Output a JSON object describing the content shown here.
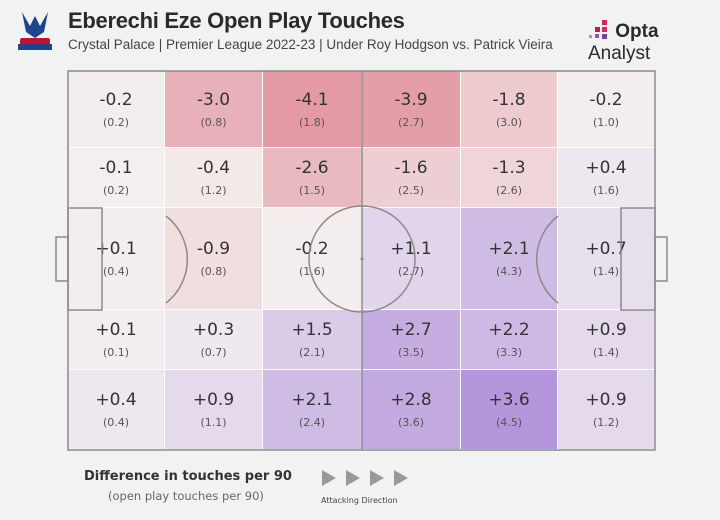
{
  "header": {
    "title": "Eberechi Eze Open Play Touches",
    "subtitle": "Crystal Palace | Premier League 2022-23 | Under Roy Hodgson vs. Patrick Vieira",
    "brand_bold": "Opta",
    "brand_light": "Analyst",
    "crest": "crystal-palace-crest"
  },
  "colors": {
    "negative": "#e39aa4",
    "positive": "#b596dd",
    "neutral": "#f4f1f1",
    "pitch_lines": "#8a8a8a"
  },
  "chart_data": {
    "type": "heatmap",
    "title": "Eberechi Eze Open Play Touches",
    "description_rows": "5 pitch zones (top to bottom) x 6 zones (left to right, attacking right)",
    "diff": [
      [
        "-0.2",
        "-3.0",
        "-4.1",
        "-3.9",
        "-1.8",
        "-0.2"
      ],
      [
        "-0.1",
        "-0.4",
        "-2.6",
        "-1.6",
        "-1.3",
        "+0.4"
      ],
      [
        "+0.1",
        "-0.9",
        "-0.2",
        "+1.1",
        "+2.1",
        "+0.7"
      ],
      [
        "+0.1",
        "+0.3",
        "+1.5",
        "+2.7",
        "+2.2",
        "+0.9"
      ],
      [
        "+0.4",
        "+0.9",
        "+2.1",
        "+2.8",
        "+3.6",
        "+0.9"
      ]
    ],
    "touches": [
      [
        "(0.2)",
        "(0.8)",
        "(1.8)",
        "(2.7)",
        "(3.0)",
        "(1.0)"
      ],
      [
        "(0.2)",
        "(1.2)",
        "(1.5)",
        "(2.5)",
        "(2.6)",
        "(1.6)"
      ],
      [
        "(0.4)",
        "(0.8)",
        "(1.6)",
        "(2.7)",
        "(4.3)",
        "(1.4)"
      ],
      [
        "(0.1)",
        "(0.7)",
        "(2.1)",
        "(3.5)",
        "(3.3)",
        "(1.4)"
      ],
      [
        "(0.4)",
        "(1.1)",
        "(2.4)",
        "(3.6)",
        "(4.5)",
        "(1.2)"
      ]
    ]
  },
  "legend": {
    "title": "Difference in touches per 90",
    "subtitle": "(open play touches per 90)",
    "direction": "Attacking Direction"
  }
}
